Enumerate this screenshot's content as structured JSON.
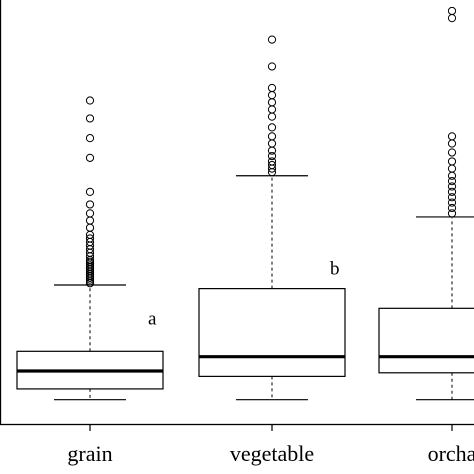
{
  "chart_data": {
    "type": "boxplot",
    "title": "",
    "xlabel": "",
    "ylabel": "",
    "ylim": [
      0,
      11.5
    ],
    "grid": false,
    "categories": [
      "grain",
      "vegetable",
      "orcha"
    ],
    "boxes": [
      {
        "name": "grain",
        "whisker_low": 0.4,
        "q1": 0.7,
        "median": 1.2,
        "q3": 1.75,
        "whisker_high": 3.6,
        "outliers": [
          3.65,
          3.7,
          3.75,
          3.8,
          3.85,
          3.9,
          3.95,
          4.0,
          4.05,
          4.1,
          4.15,
          4.2,
          4.25,
          4.3,
          4.4,
          4.5,
          4.6,
          4.7,
          4.8,
          4.9,
          5.0,
          5.2,
          5.4,
          5.6,
          5.85,
          6.2,
          7.15,
          7.7,
          8.25,
          8.75
        ]
      },
      {
        "name": "vegetable",
        "whisker_low": 0.4,
        "q1": 1.05,
        "median": 1.6,
        "q3": 3.5,
        "whisker_high": 6.65,
        "outliers": [
          6.75,
          6.85,
          6.95,
          7.05,
          7.2,
          7.35,
          7.55,
          7.75,
          8.0,
          8.3,
          8.5,
          8.7,
          8.9,
          9.1,
          9.7,
          10.45
        ]
      },
      {
        "name": "orcha",
        "whisker_low": 0.4,
        "q1": 1.15,
        "median": 1.6,
        "q3": 2.95,
        "whisker_high": 5.5,
        "outliers": [
          5.6,
          5.75,
          5.9,
          6.05,
          6.2,
          6.35,
          6.5,
          6.65,
          6.85,
          7.05,
          7.3,
          7.55,
          7.75,
          11.05,
          11.25
        ]
      }
    ],
    "annotations": [
      {
        "text": "a",
        "category": "grain",
        "value": 2.5
      },
      {
        "text": "b",
        "category": "vegetable",
        "value": 3.9
      }
    ]
  }
}
